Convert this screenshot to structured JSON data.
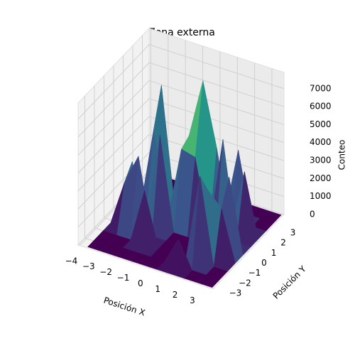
{
  "chart_data": {
    "type": "surface",
    "title": "Zona externa",
    "xlabel": "Posición X",
    "ylabel": "Posición Y",
    "zlabel": "Conteo",
    "colormap": "viridis",
    "x": [
      -3.6,
      -2.8,
      -2,
      -1.2,
      -0.4,
      0.4,
      1.2,
      2,
      2.8,
      3.6
    ],
    "y": [
      -3.6,
      -2.8,
      -2,
      -1.2,
      -0.4,
      0.4,
      1.2,
      2,
      2.8,
      3.6
    ],
    "z": [
      [
        0,
        0,
        0,
        0,
        0,
        0,
        0,
        0,
        0,
        0
      ],
      [
        0,
        0,
        0,
        0,
        0,
        0,
        1500,
        0,
        0,
        0
      ],
      [
        0,
        0,
        0,
        3000,
        0,
        0,
        0,
        4800,
        0,
        0
      ],
      [
        0,
        2500,
        4200,
        0,
        0,
        0,
        0,
        3600,
        2800,
        0
      ],
      [
        0,
        3200,
        0,
        5200,
        0,
        0,
        0,
        0,
        4100,
        0
      ],
      [
        0,
        0,
        4800,
        0,
        4200,
        4000,
        0,
        5500,
        0,
        0
      ],
      [
        0,
        0,
        6800,
        0,
        4500,
        7800,
        4300,
        0,
        3500,
        0
      ],
      [
        0,
        0,
        0,
        0,
        0,
        0,
        0,
        4000,
        0,
        0
      ],
      [
        0,
        0,
        0,
        0,
        0,
        0,
        0,
        0,
        0,
        0
      ],
      [
        0,
        0,
        0,
        0,
        0,
        0,
        0,
        0,
        0,
        0
      ]
    ],
    "xlim": [
      -4.1,
      3.7
    ],
    "ylim": [
      -3.7,
      3.7
    ],
    "zlim": [
      0,
      7900
    ],
    "xticks": [
      {
        "value": -4,
        "label": "−4"
      },
      {
        "value": -3,
        "label": "−3"
      },
      {
        "value": -2,
        "label": "−2"
      },
      {
        "value": -1,
        "label": "−1"
      },
      0,
      1,
      2,
      3
    ],
    "yticks": [
      {
        "value": -3,
        "label": "−3"
      },
      {
        "value": -2,
        "label": "−2"
      },
      {
        "value": -1,
        "label": "−1"
      },
      0,
      1,
      2,
      3
    ],
    "zticks": [
      0,
      1000,
      2000,
      3000,
      4000,
      5000,
      6000,
      7000
    ],
    "grid": true
  }
}
